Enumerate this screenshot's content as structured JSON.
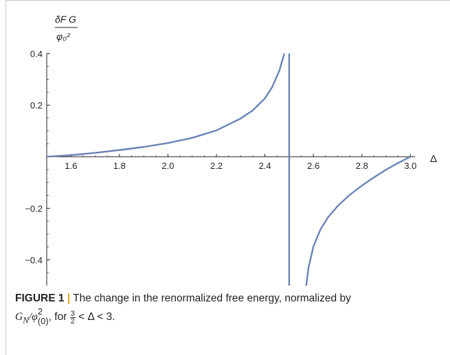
{
  "chart_data": {
    "type": "line",
    "ylabel_top": "δF G",
    "ylabel_bottom": "φ₀²",
    "xlabel": "Δ",
    "xlim": [
      1.5,
      3.05
    ],
    "ylim": [
      -0.5,
      0.4
    ],
    "x_ticks": [
      "1.6",
      "1.8",
      "2.0",
      "2.2",
      "2.4",
      "2.6",
      "2.8",
      "3.0"
    ],
    "x_tick_values": [
      1.6,
      1.8,
      2.0,
      2.2,
      2.4,
      2.6,
      2.8,
      3.0
    ],
    "y_ticks": [
      "0.4",
      "0.2",
      "−0.2",
      "−0.4"
    ],
    "y_tick_values": [
      0.4,
      0.2,
      -0.2,
      -0.4
    ],
    "line_color": "#6a82b6",
    "asymptote_x": 2.5,
    "series": [
      {
        "points": [
          [
            1.5,
            0.0
          ],
          [
            1.6,
            0.006
          ],
          [
            1.7,
            0.015
          ],
          [
            1.8,
            0.026
          ],
          [
            1.9,
            0.038
          ],
          [
            2.0,
            0.053
          ],
          [
            2.1,
            0.073
          ],
          [
            2.2,
            0.102
          ],
          [
            2.3,
            0.148
          ],
          [
            2.35,
            0.18
          ],
          [
            2.4,
            0.226
          ],
          [
            2.43,
            0.27
          ],
          [
            2.46,
            0.335
          ],
          [
            2.48,
            0.4
          ]
        ]
      },
      {
        "points": [
          [
            2.57,
            -0.5
          ],
          [
            2.58,
            -0.43
          ],
          [
            2.6,
            -0.348
          ],
          [
            2.63,
            -0.28
          ],
          [
            2.66,
            -0.235
          ],
          [
            2.7,
            -0.191
          ],
          [
            2.75,
            -0.148
          ],
          [
            2.8,
            -0.112
          ],
          [
            2.85,
            -0.08
          ],
          [
            2.9,
            -0.05
          ],
          [
            2.95,
            -0.024
          ],
          [
            3.0,
            0.0
          ]
        ]
      }
    ]
  },
  "caption": {
    "label": "FIGURE 1",
    "separator": "|",
    "text_line1": " The change in the renormalized free energy, normalized by",
    "math_line2": "G",
    "math_sub_n": "N",
    "math_phi": "/φ",
    "math_sup": "2",
    "math_sub": "(0)",
    "for_text": ", for ",
    "frac_num": "3",
    "frac_den": "2",
    "range_text": " < Δ < 3."
  }
}
